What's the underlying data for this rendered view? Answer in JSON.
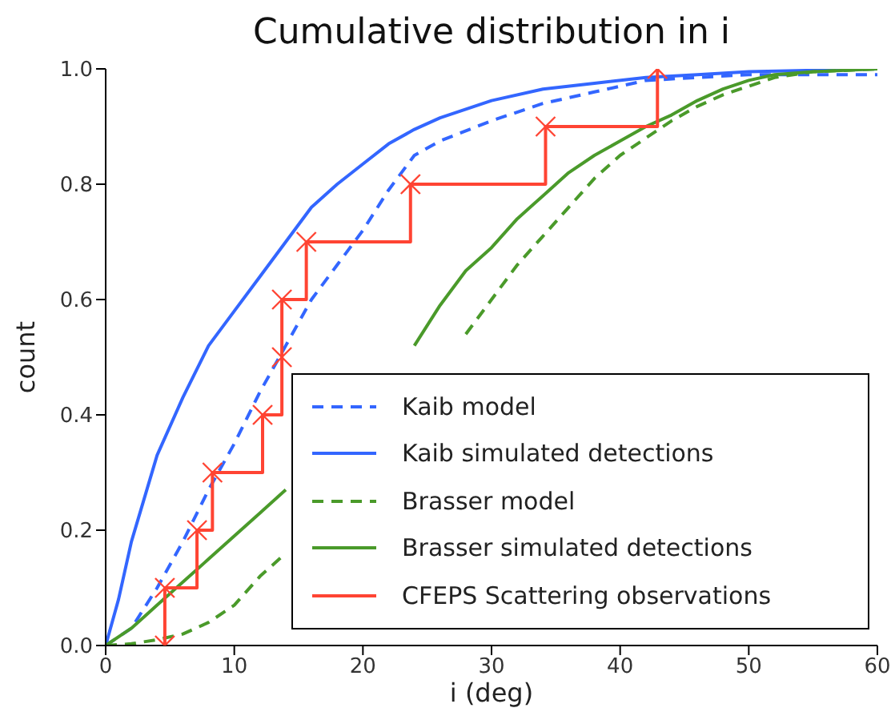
{
  "chart_data": {
    "type": "line",
    "title": "Cumulative distribution in i",
    "xlabel": "i (deg)",
    "ylabel": "count",
    "xlim": [
      0,
      60
    ],
    "xticks": [
      0,
      10,
      20,
      30,
      40,
      50,
      60
    ],
    "ylim": [
      0,
      1
    ],
    "yticks": [
      {
        "value": 0,
        "label": "0.0"
      },
      {
        "value": 0.2,
        "label": "0.2"
      },
      {
        "value": 0.4,
        "label": "0.4"
      },
      {
        "value": 0.6,
        "label": "0.6"
      },
      {
        "value": 0.8,
        "label": "0.8"
      },
      {
        "value": 1,
        "label": "1.0"
      }
    ],
    "grid": false,
    "legend": "bottom right",
    "marker": "none",
    "series": [
      {
        "name": "Kaib model",
        "color": "#3366ff",
        "line_style": "dashed",
        "x": [
          0,
          2,
          4,
          6,
          8,
          10,
          12,
          14,
          16,
          18,
          20,
          22,
          24,
          26,
          30,
          34,
          38,
          42,
          46,
          50,
          60
        ],
        "values": [
          0,
          0.03,
          0.1,
          0.18,
          0.27,
          0.35,
          0.44,
          0.52,
          0.6,
          0.66,
          0.72,
          0.79,
          0.85,
          0.875,
          0.91,
          0.94,
          0.96,
          0.98,
          0.985,
          0.99,
          0.99
        ]
      },
      {
        "name": "Kaib simulated detections",
        "color": "#3366ff",
        "line_style": "solid",
        "x": [
          0,
          1,
          2,
          4,
          6,
          8,
          10,
          12,
          14,
          16,
          18,
          20,
          22,
          24,
          26,
          30,
          34,
          38,
          42,
          46,
          50,
          60
        ],
        "values": [
          0,
          0.08,
          0.18,
          0.33,
          0.43,
          0.52,
          0.58,
          0.64,
          0.7,
          0.76,
          0.8,
          0.835,
          0.87,
          0.895,
          0.915,
          0.945,
          0.965,
          0.975,
          0.985,
          0.99,
          0.995,
          1
        ]
      },
      {
        "name": "Brasser model",
        "color": "#4a9a2a",
        "line_style": "dashed",
        "x": [
          0,
          2,
          4,
          6,
          8,
          10,
          12,
          14,
          26,
          28,
          30,
          32,
          34,
          36,
          38,
          40,
          42,
          44,
          46,
          48,
          50,
          52,
          55,
          60
        ],
        "values": [
          0,
          0.003,
          0.01,
          0.02,
          0.04,
          0.07,
          0.12,
          0.16,
          null,
          0.54,
          0.6,
          0.66,
          0.71,
          0.76,
          0.81,
          0.85,
          0.88,
          0.91,
          0.935,
          0.955,
          0.97,
          0.985,
          0.995,
          1
        ]
      },
      {
        "name": "Brasser simulated detections",
        "color": "#4a9a2a",
        "line_style": "solid",
        "x": [
          0,
          2,
          4,
          6,
          8,
          10,
          12,
          14,
          23,
          24,
          26,
          28,
          30,
          32,
          34,
          36,
          38,
          40,
          42,
          44,
          46,
          48,
          50,
          52,
          55,
          60
        ],
        "values": [
          0,
          0.03,
          0.07,
          0.11,
          0.15,
          0.19,
          0.23,
          0.27,
          null,
          0.52,
          0.59,
          0.65,
          0.69,
          0.74,
          0.78,
          0.82,
          0.85,
          0.875,
          0.9,
          0.92,
          0.945,
          0.965,
          0.98,
          0.99,
          0.995,
          1
        ]
      },
      {
        "name": "CFEPS Scattering observations",
        "type": "step",
        "color": "#ff4433",
        "line_style": "solid",
        "marker": "cross",
        "x": [
          4.6,
          4.6,
          7.1,
          8.3,
          12.2,
          13.7,
          13.7,
          15.6,
          23.7,
          34.2,
          42.9
        ],
        "values": [
          0,
          0.1,
          0.2,
          0.3,
          0.4,
          0.5,
          0.6,
          0.7,
          0.8,
          0.9,
          1
        ]
      }
    ]
  }
}
